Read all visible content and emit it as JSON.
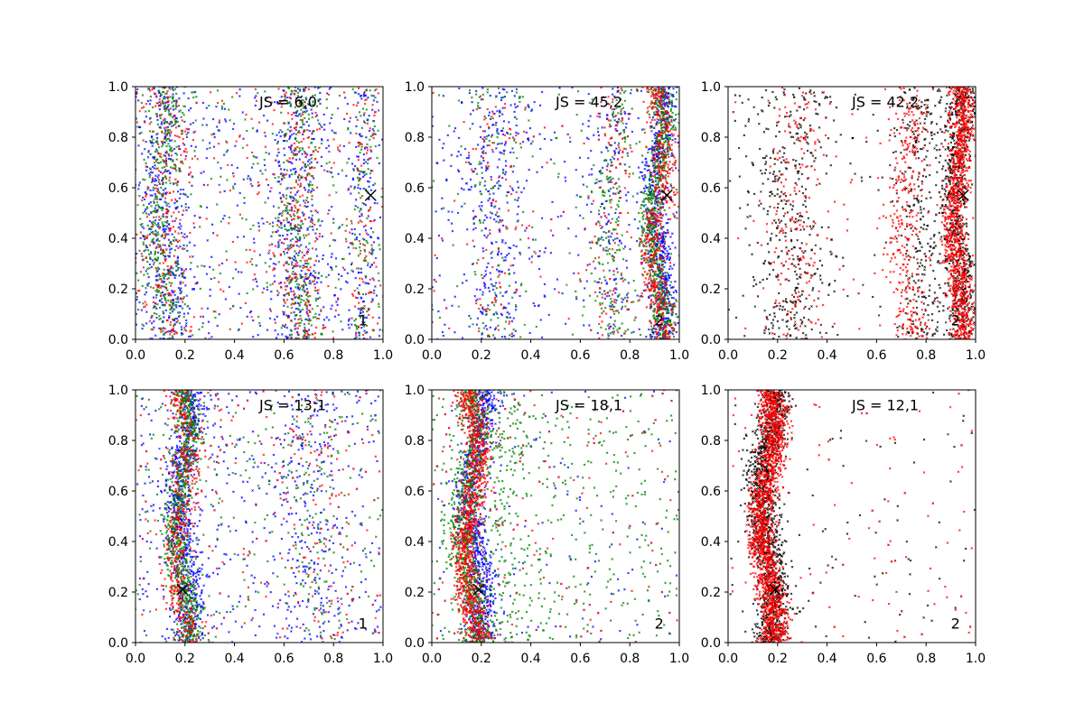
{
  "figure": {
    "layout": {
      "rows": 2,
      "cols": 3
    },
    "colors": {
      "blue": "#0000ff",
      "green": "#008000",
      "red": "#ff0000",
      "black": "#000000",
      "axes": "#000000"
    }
  },
  "chart_data": [
    {
      "type": "scatter",
      "annotation": "JS = 6,0",
      "corner_label": "1",
      "xlim": [
        0,
        1
      ],
      "ylim": [
        0,
        1
      ],
      "x_ticks": [
        "0.0",
        "0.2",
        "0.4",
        "0.6",
        "0.8",
        "1.0"
      ],
      "y_ticks": [
        "0.0",
        "0.2",
        "0.4",
        "0.6",
        "0.8",
        "1.0"
      ],
      "marker": {
        "symbol": "x",
        "x": 0.95,
        "y": 0.57
      },
      "series": [
        {
          "color": "blue",
          "count": 1200,
          "components": [
            {
              "weight": 0.3,
              "center": 0.12,
              "width": 0.05,
              "wave": 0.02
            },
            {
              "weight": 0.25,
              "center": 0.65,
              "width": 0.05,
              "wave": 0.02
            },
            {
              "weight": 0.1,
              "center": 0.92,
              "width": 0.03,
              "wave": 0.01
            },
            {
              "weight": 0.35,
              "uniform": true
            }
          ]
        },
        {
          "color": "green",
          "count": 1000,
          "components": [
            {
              "weight": 0.35,
              "center": 0.11,
              "width": 0.04,
              "wave": 0.02
            },
            {
              "weight": 0.3,
              "center": 0.66,
              "width": 0.04,
              "wave": 0.02
            },
            {
              "weight": 0.1,
              "center": 0.92,
              "width": 0.03,
              "wave": 0.01
            },
            {
              "weight": 0.25,
              "uniform": true
            }
          ]
        },
        {
          "color": "red",
          "count": 700,
          "components": [
            {
              "weight": 0.3,
              "center": 0.12,
              "width": 0.05,
              "wave": 0.02
            },
            {
              "weight": 0.3,
              "center": 0.66,
              "width": 0.05,
              "wave": 0.02
            },
            {
              "weight": 0.1,
              "center": 0.92,
              "width": 0.03,
              "wave": 0.01
            },
            {
              "weight": 0.3,
              "uniform": true
            }
          ]
        }
      ]
    },
    {
      "type": "scatter",
      "annotation": "JS = 45,2",
      "corner_label": "2",
      "xlim": [
        0,
        1
      ],
      "ylim": [
        0,
        1
      ],
      "x_ticks": [
        "0.0",
        "0.2",
        "0.4",
        "0.6",
        "0.8",
        "1.0"
      ],
      "y_ticks": [
        "0.0",
        "0.2",
        "0.4",
        "0.6",
        "0.8",
        "1.0"
      ],
      "marker": {
        "symbol": "x",
        "x": 0.95,
        "y": 0.57
      },
      "series": [
        {
          "color": "blue",
          "count": 1300,
          "components": [
            {
              "weight": 0.45,
              "center": 0.92,
              "width": 0.025,
              "wave": 0.025
            },
            {
              "weight": 0.2,
              "center": 0.25,
              "width": 0.07,
              "wave": 0.02
            },
            {
              "weight": 0.1,
              "center": 0.72,
              "width": 0.04,
              "wave": 0.02
            },
            {
              "weight": 0.25,
              "uniform": true
            }
          ]
        },
        {
          "color": "green",
          "count": 1100,
          "components": [
            {
              "weight": 0.6,
              "center": 0.91,
              "width": 0.025,
              "wave": 0.025
            },
            {
              "weight": 0.2,
              "center": 0.73,
              "width": 0.04,
              "wave": 0.02
            },
            {
              "weight": 0.1,
              "center": 0.25,
              "width": 0.06,
              "wave": 0.02
            },
            {
              "weight": 0.1,
              "uniform": true
            }
          ]
        },
        {
          "color": "red",
          "count": 800,
          "components": [
            {
              "weight": 0.65,
              "center": 0.92,
              "width": 0.025,
              "wave": 0.025
            },
            {
              "weight": 0.15,
              "center": 0.73,
              "width": 0.04,
              "wave": 0.02
            },
            {
              "weight": 0.1,
              "center": 0.26,
              "width": 0.06,
              "wave": 0.02
            },
            {
              "weight": 0.1,
              "uniform": true
            }
          ]
        }
      ]
    },
    {
      "type": "scatter",
      "annotation": "JS = 42,2",
      "corner_label": "2",
      "xlim": [
        0,
        1
      ],
      "ylim": [
        0,
        1
      ],
      "x_ticks": [
        "0.0",
        "0.2",
        "0.4",
        "0.6",
        "0.8",
        "1.0"
      ],
      "y_ticks": [
        "0.0",
        "0.2",
        "0.4",
        "0.6",
        "0.8",
        "1.0"
      ],
      "marker": {
        "symbol": "x",
        "x": 0.95,
        "y": 0.57
      },
      "series": [
        {
          "color": "black",
          "count": 1500,
          "components": [
            {
              "weight": 0.45,
              "center": 0.93,
              "width": 0.03,
              "wave": 0.02
            },
            {
              "weight": 0.2,
              "center": 0.78,
              "width": 0.05,
              "wave": 0.02
            },
            {
              "weight": 0.25,
              "center": 0.25,
              "width": 0.08,
              "wave": 0.02
            },
            {
              "weight": 0.1,
              "uniform": true
            }
          ]
        },
        {
          "color": "red",
          "count": 1700,
          "components": [
            {
              "weight": 0.65,
              "center": 0.93,
              "width": 0.025,
              "wave": 0.02
            },
            {
              "weight": 0.2,
              "center": 0.72,
              "width": 0.04,
              "wave": 0.02
            },
            {
              "weight": 0.1,
              "center": 0.27,
              "width": 0.06,
              "wave": 0.02
            },
            {
              "weight": 0.05,
              "uniform": true
            }
          ]
        }
      ]
    },
    {
      "type": "scatter",
      "annotation": "JS = 13,1",
      "corner_label": "1",
      "xlim": [
        0,
        1
      ],
      "ylim": [
        0,
        1
      ],
      "x_ticks": [
        "0.0",
        "0.2",
        "0.4",
        "0.6",
        "0.8",
        "1.0"
      ],
      "y_ticks": [
        "0.0",
        "0.2",
        "0.4",
        "0.6",
        "0.8",
        "1.0"
      ],
      "marker": {
        "symbol": "x",
        "x": 0.19,
        "y": 0.21
      },
      "series": [
        {
          "color": "blue",
          "count": 1300,
          "components": [
            {
              "weight": 0.5,
              "center": 0.2,
              "width": 0.035,
              "wave": 0.03
            },
            {
              "weight": 0.15,
              "center": 0.7,
              "width": 0.07,
              "wave": 0.02
            },
            {
              "weight": 0.35,
              "uniform": true
            }
          ]
        },
        {
          "color": "green",
          "count": 1100,
          "components": [
            {
              "weight": 0.7,
              "center": 0.19,
              "width": 0.025,
              "wave": 0.03
            },
            {
              "weight": 0.1,
              "center": 0.72,
              "width": 0.06,
              "wave": 0.02
            },
            {
              "weight": 0.2,
              "uniform": true
            }
          ]
        },
        {
          "color": "red",
          "count": 700,
          "components": [
            {
              "weight": 0.6,
              "center": 0.19,
              "width": 0.03,
              "wave": 0.03
            },
            {
              "weight": 0.1,
              "center": 0.72,
              "width": 0.06,
              "wave": 0.02
            },
            {
              "weight": 0.3,
              "uniform": true
            }
          ]
        }
      ]
    },
    {
      "type": "scatter",
      "annotation": "JS = 18,1",
      "corner_label": "2",
      "xlim": [
        0,
        1
      ],
      "ylim": [
        0,
        1
      ],
      "x_ticks": [
        "0.0",
        "0.2",
        "0.4",
        "0.6",
        "0.8",
        "1.0"
      ],
      "y_ticks": [
        "0.0",
        "0.2",
        "0.4",
        "0.6",
        "0.8",
        "1.0"
      ],
      "marker": {
        "symbol": "x",
        "x": 0.19,
        "y": 0.21
      },
      "series": [
        {
          "color": "blue",
          "count": 1000,
          "components": [
            {
              "weight": 0.8,
              "center": 0.18,
              "width": 0.03,
              "wave": 0.03
            },
            {
              "weight": 0.2,
              "uniform": true
            }
          ]
        },
        {
          "color": "green",
          "count": 1400,
          "components": [
            {
              "weight": 0.55,
              "center": 0.15,
              "width": 0.03,
              "wave": 0.03
            },
            {
              "weight": 0.15,
              "center": 0.3,
              "width": 0.07,
              "wave": 0.02
            },
            {
              "weight": 0.3,
              "uniform": true
            }
          ]
        },
        {
          "color": "red",
          "count": 1100,
          "components": [
            {
              "weight": 0.85,
              "center": 0.16,
              "width": 0.028,
              "wave": 0.03
            },
            {
              "weight": 0.15,
              "uniform": true
            }
          ]
        }
      ]
    },
    {
      "type": "scatter",
      "annotation": "JS = 12,1",
      "corner_label": "2",
      "xlim": [
        0,
        1
      ],
      "ylim": [
        0,
        1
      ],
      "x_ticks": [
        "0.0",
        "0.2",
        "0.4",
        "0.6",
        "0.8",
        "1.0"
      ],
      "y_ticks": [
        "0.0",
        "0.2",
        "0.4",
        "0.6",
        "0.8",
        "1.0"
      ],
      "marker": {
        "symbol": "x",
        "x": 0.19,
        "y": 0.21
      },
      "series": [
        {
          "color": "black",
          "count": 1400,
          "components": [
            {
              "weight": 0.92,
              "center": 0.16,
              "width": 0.032,
              "wave": 0.03
            },
            {
              "weight": 0.08,
              "uniform": true
            }
          ]
        },
        {
          "color": "red",
          "count": 1700,
          "components": [
            {
              "weight": 0.93,
              "center": 0.16,
              "width": 0.028,
              "wave": 0.03
            },
            {
              "weight": 0.07,
              "uniform": true
            }
          ]
        }
      ]
    }
  ]
}
